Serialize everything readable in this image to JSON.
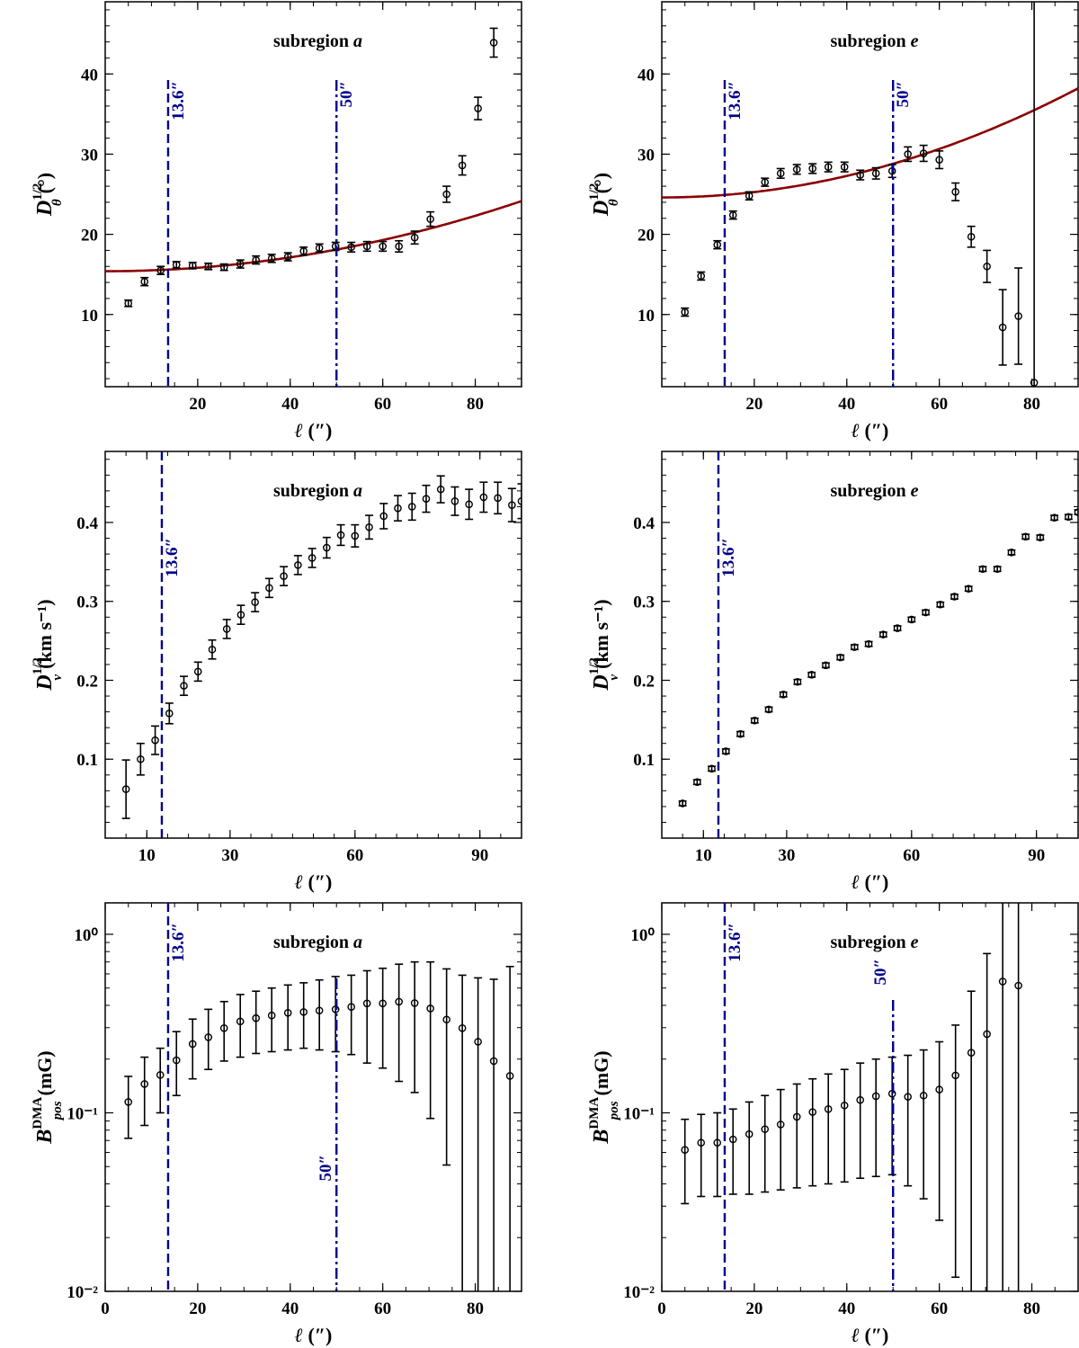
{
  "chart_data": [
    {
      "type": "scatter",
      "panel": "row1-left",
      "title": "subregion a",
      "title_italic": "a",
      "xlabel": "ℓ (″)",
      "ylabel_main": "D",
      "ylabel_sub": "θ",
      "ylabel_sup": "1/2",
      "ylabel_unit": "(°)",
      "xlim": [
        0,
        90
      ],
      "ylim": [
        1,
        49
      ],
      "yscale": "linear",
      "xticks": [
        20,
        40,
        60,
        80
      ],
      "yticks": [
        10,
        20,
        30,
        40
      ],
      "x": [
        5.0,
        8.5,
        12.0,
        15.4,
        18.9,
        22.3,
        25.7,
        29.2,
        32.6,
        36.0,
        39.5,
        42.9,
        46.3,
        49.8,
        53.2,
        56.6,
        60.0,
        63.5,
        66.9,
        70.3,
        73.8,
        77.2,
        80.6,
        84.0
      ],
      "y": [
        11.4,
        14.1,
        15.5,
        16.2,
        16.1,
        16.0,
        15.9,
        16.3,
        16.8,
        17.0,
        17.2,
        17.9,
        18.3,
        18.5,
        18.4,
        18.5,
        18.5,
        18.5,
        19.6,
        21.9,
        25.0,
        28.6,
        35.7,
        43.9
      ],
      "yerr": [
        0.4,
        0.5,
        0.5,
        0.4,
        0.4,
        0.4,
        0.4,
        0.5,
        0.5,
        0.5,
        0.5,
        0.5,
        0.5,
        0.5,
        0.6,
        0.6,
        0.6,
        0.7,
        0.8,
        0.9,
        1.0,
        1.2,
        1.4,
        1.8
      ],
      "fit": {
        "color": "#8b0000",
        "b": 15.4,
        "m": 0.00108,
        "label": "fit"
      },
      "vlines": [
        {
          "x": 13.6,
          "style": "dashed",
          "label": "13.6″"
        },
        {
          "x": 50,
          "style": "dashdot",
          "label": "50″"
        }
      ]
    },
    {
      "type": "scatter",
      "panel": "row1-right",
      "title": "subregion e",
      "title_italic": "e",
      "xlabel": "ℓ (″)",
      "ylabel_main": "D",
      "ylabel_sub": "θ",
      "ylabel_sup": "1/2",
      "ylabel_unit": "(°)",
      "xlim": [
        0,
        90
      ],
      "ylim": [
        1,
        49
      ],
      "yscale": "linear",
      "xticks": [
        20,
        40,
        60,
        80
      ],
      "yticks": [
        10,
        20,
        30,
        40
      ],
      "x": [
        5.0,
        8.5,
        12.0,
        15.4,
        18.9,
        22.3,
        25.7,
        29.2,
        32.6,
        36.0,
        39.5,
        42.9,
        46.3,
        49.8,
        53.2,
        56.6,
        60.0,
        63.5,
        66.9,
        70.3,
        73.7,
        77.1,
        80.5
      ],
      "y": [
        10.3,
        14.8,
        18.7,
        22.4,
        24.8,
        26.5,
        27.6,
        28.1,
        28.2,
        28.4,
        28.4,
        27.4,
        27.6,
        27.9,
        30.0,
        30.1,
        29.3,
        25.3,
        19.7,
        16.0,
        8.4,
        9.8,
        1.5
      ],
      "yerr": [
        0.5,
        0.5,
        0.5,
        0.5,
        0.5,
        0.5,
        0.6,
        0.6,
        0.6,
        0.6,
        0.6,
        0.6,
        0.7,
        0.8,
        0.9,
        1.0,
        1.1,
        1.1,
        1.3,
        2.0,
        4.7,
        6.0,
        60.0
      ],
      "fit": {
        "color": "#8b0000",
        "b": 24.6,
        "m": 0.00168,
        "label": "fit"
      },
      "vlines": [
        {
          "x": 13.6,
          "style": "dashed",
          "label": "13.6″"
        },
        {
          "x": 50,
          "style": "dashdot",
          "label": "50″"
        }
      ]
    },
    {
      "type": "scatter",
      "panel": "row2-left",
      "title": "subregion a",
      "title_italic": "a",
      "xlabel": "ℓ (″)",
      "ylabel_main": "D",
      "ylabel_sub": "v",
      "ylabel_sup": "1/2",
      "ylabel_unit": "(km s⁻¹)",
      "xlim": [
        0,
        100
      ],
      "ylim": [
        0,
        0.49
      ],
      "yscale": "linear",
      "xticks": [
        10,
        30,
        60,
        90
      ],
      "yticks": [
        0.1,
        0.2,
        0.3,
        0.4
      ],
      "x": [
        5,
        8.5,
        12,
        15.4,
        18.9,
        22.3,
        25.7,
        29.2,
        32.6,
        36.0,
        39.4,
        42.9,
        46.3,
        49.7,
        53.2,
        56.6,
        60.0,
        63.4,
        66.9,
        70.3,
        73.7,
        77.1,
        80.6,
        84.0,
        87.4,
        90.9,
        94.3,
        97.7,
        100.0
      ],
      "y": [
        0.062,
        0.1,
        0.124,
        0.158,
        0.193,
        0.211,
        0.239,
        0.265,
        0.283,
        0.299,
        0.317,
        0.332,
        0.346,
        0.355,
        0.368,
        0.384,
        0.383,
        0.394,
        0.408,
        0.418,
        0.42,
        0.43,
        0.442,
        0.427,
        0.423,
        0.432,
        0.431,
        0.422,
        0.427
      ],
      "yerr": [
        0.037,
        0.02,
        0.018,
        0.013,
        0.012,
        0.012,
        0.012,
        0.012,
        0.012,
        0.012,
        0.012,
        0.012,
        0.012,
        0.012,
        0.013,
        0.013,
        0.014,
        0.015,
        0.016,
        0.016,
        0.017,
        0.017,
        0.017,
        0.018,
        0.019,
        0.019,
        0.02,
        0.021,
        0.022
      ],
      "vlines": [
        {
          "x": 13.6,
          "style": "dashed",
          "label": "13.6″"
        }
      ]
    },
    {
      "type": "scatter",
      "panel": "row2-right",
      "title": "subregion e",
      "title_italic": "e",
      "xlabel": "ℓ (″)",
      "ylabel_main": "D",
      "ylabel_sub": "v",
      "ylabel_sup": "1/2",
      "ylabel_unit": "(km s⁻¹)",
      "xlim": [
        0,
        100
      ],
      "ylim": [
        0,
        0.49
      ],
      "yscale": "linear",
      "xticks": [
        10,
        30,
        60,
        90
      ],
      "yticks": [
        0.1,
        0.2,
        0.3,
        0.4
      ],
      "x": [
        5,
        8.5,
        12,
        15.4,
        18.9,
        22.3,
        25.7,
        29.2,
        32.6,
        36.0,
        39.4,
        42.9,
        46.3,
        49.7,
        53.2,
        56.6,
        60.0,
        63.4,
        66.9,
        70.3,
        73.7,
        77.1,
        80.6,
        84.0,
        87.4,
        90.9,
        94.3,
        97.7,
        100.0
      ],
      "y": [
        0.044,
        0.071,
        0.088,
        0.11,
        0.132,
        0.149,
        0.163,
        0.182,
        0.198,
        0.207,
        0.219,
        0.229,
        0.242,
        0.246,
        0.258,
        0.266,
        0.277,
        0.286,
        0.296,
        0.306,
        0.316,
        0.341,
        0.341,
        0.362,
        0.382,
        0.381,
        0.406,
        0.407,
        0.413
      ],
      "yerr": [
        0.003,
        0.003,
        0.003,
        0.003,
        0.003,
        0.003,
        0.003,
        0.003,
        0.003,
        0.003,
        0.003,
        0.003,
        0.003,
        0.003,
        0.003,
        0.003,
        0.003,
        0.003,
        0.003,
        0.003,
        0.003,
        0.003,
        0.003,
        0.003,
        0.003,
        0.003,
        0.003,
        0.003,
        0.003
      ],
      "vlines": [
        {
          "x": 13.6,
          "style": "dashed",
          "label": "13.6″"
        }
      ]
    },
    {
      "type": "scatter",
      "panel": "row3-left",
      "title": "subregion a",
      "title_italic": "a",
      "xlabel": "ℓ (″)",
      "ylabel_main": "B",
      "ylabel_sub": "pos",
      "ylabel_sup": "DMA",
      "ylabel_unit": "(mG)",
      "xlim": [
        0,
        90
      ],
      "ylim": [
        0.01,
        1.5
      ],
      "yscale": "log",
      "xticks": [
        0,
        20,
        40,
        60,
        80
      ],
      "yticks": [
        0.01,
        0.1,
        1
      ],
      "ytick_labels": [
        "10⁻²",
        "10⁻¹",
        "10⁰"
      ],
      "x": [
        5.0,
        8.5,
        11.9,
        15.4,
        18.9,
        22.3,
        25.7,
        29.2,
        32.6,
        36.0,
        39.5,
        42.9,
        46.3,
        49.8,
        53.2,
        56.6,
        60.0,
        63.5,
        66.9,
        70.3,
        73.8,
        77.2,
        80.6,
        84.0,
        87.5
      ],
      "y": [
        0.115,
        0.145,
        0.163,
        0.197,
        0.243,
        0.265,
        0.298,
        0.325,
        0.339,
        0.351,
        0.363,
        0.367,
        0.374,
        0.38,
        0.392,
        0.41,
        0.41,
        0.419,
        0.412,
        0.384,
        0.333,
        0.298,
        0.25,
        0.195,
        0.161
      ],
      "ylo": [
        0.072,
        0.085,
        0.1,
        0.125,
        0.155,
        0.175,
        0.195,
        0.205,
        0.215,
        0.22,
        0.225,
        0.23,
        0.225,
        0.22,
        0.212,
        0.19,
        0.178,
        0.15,
        0.13,
        0.093,
        0.051,
        0.01,
        0.01,
        0.01,
        0.01
      ],
      "yhi": [
        0.16,
        0.205,
        0.23,
        0.285,
        0.335,
        0.38,
        0.42,
        0.46,
        0.48,
        0.5,
        0.52,
        0.535,
        0.555,
        0.58,
        0.59,
        0.625,
        0.645,
        0.68,
        0.7,
        0.7,
        0.64,
        0.59,
        0.57,
        0.56,
        0.66
      ],
      "vlines": [
        {
          "x": 13.6,
          "style": "dashed",
          "label": "13.6″"
        },
        {
          "x": 50,
          "style": "dashdot",
          "label": "50″"
        }
      ]
    },
    {
      "type": "scatter",
      "panel": "row3-right",
      "title": "subregion e",
      "title_italic": "e",
      "xlabel": "ℓ (″)",
      "ylabel_main": "B",
      "ylabel_sub": "pos",
      "ylabel_sup": "DMA",
      "ylabel_unit": "(mG)",
      "xlim": [
        0,
        90
      ],
      "ylim": [
        0.01,
        1.5
      ],
      "yscale": "log",
      "xticks": [
        0,
        20,
        40,
        60,
        80
      ],
      "yticks": [
        0.01,
        0.1,
        1
      ],
      "ytick_labels": [
        "10⁻²",
        "10⁻¹",
        "10⁰"
      ],
      "x": [
        5.0,
        8.5,
        12.0,
        15.4,
        18.9,
        22.3,
        25.7,
        29.2,
        32.6,
        36.0,
        39.5,
        42.9,
        46.3,
        49.8,
        53.2,
        56.6,
        60.0,
        63.5,
        66.9,
        70.3,
        73.7,
        77.1
      ],
      "y": [
        0.062,
        0.068,
        0.068,
        0.071,
        0.076,
        0.081,
        0.086,
        0.095,
        0.101,
        0.105,
        0.11,
        0.118,
        0.124,
        0.128,
        0.123,
        0.125,
        0.135,
        0.162,
        0.217,
        0.276,
        0.544,
        0.516
      ],
      "ylo": [
        0.031,
        0.034,
        0.034,
        0.035,
        0.035,
        0.036,
        0.037,
        0.038,
        0.039,
        0.04,
        0.041,
        0.043,
        0.044,
        0.045,
        0.039,
        0.033,
        0.025,
        0.012,
        0.01,
        0.01,
        0.01,
        0.01
      ],
      "yhi": [
        0.092,
        0.098,
        0.1,
        0.105,
        0.115,
        0.125,
        0.135,
        0.145,
        0.155,
        0.165,
        0.175,
        0.19,
        0.2,
        0.205,
        0.21,
        0.225,
        0.25,
        0.31,
        0.48,
        0.78,
        1.5,
        1.5
      ],
      "vlines": [
        {
          "x": 13.6,
          "style": "dashed",
          "label": "13.6″"
        },
        {
          "x": 50,
          "style": "dashdot",
          "label": "50″"
        }
      ]
    }
  ]
}
